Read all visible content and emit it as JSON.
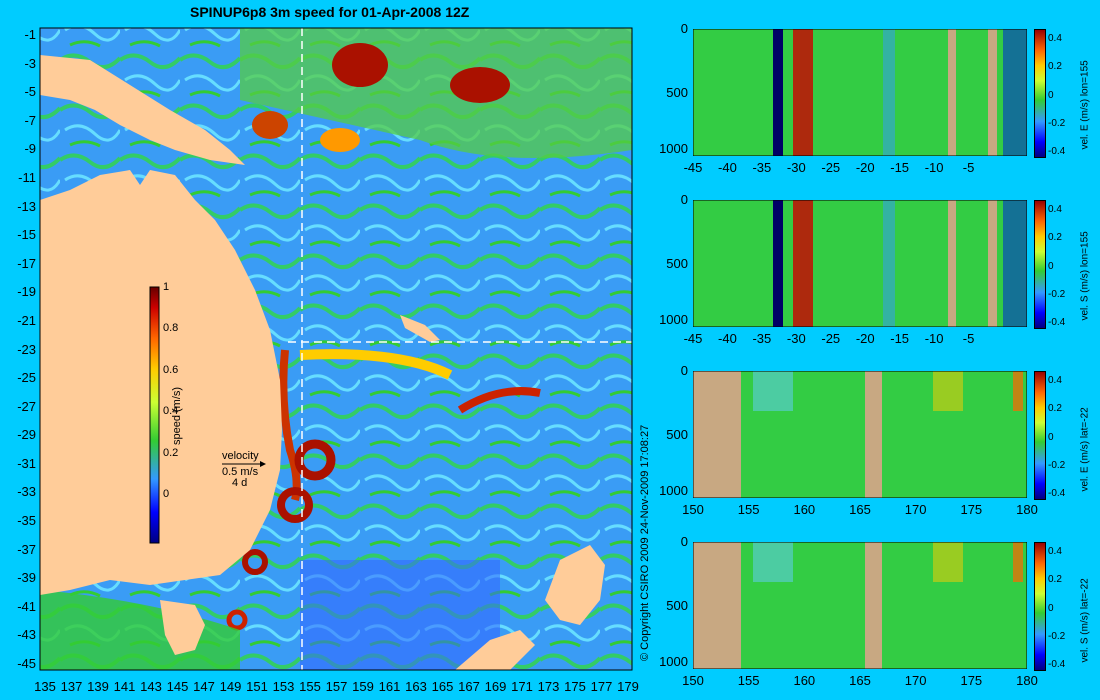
{
  "map": {
    "title": "SPINUP6p8 3m speed for 01-Apr-2008 12Z",
    "lat_ticks": [
      "-1",
      "-3",
      "-5",
      "-7",
      "-9",
      "-11",
      "-13",
      "-15",
      "-17",
      "-19",
      "-21",
      "-23",
      "-25",
      "-27",
      "-29",
      "-31",
      "-33",
      "-35",
      "-37",
      "-39",
      "-41",
      "-43",
      "-45"
    ],
    "lon_ticks": [
      "135",
      "137",
      "139",
      "141",
      "143",
      "145",
      "147",
      "149",
      "151",
      "153",
      "155",
      "157",
      "159",
      "161",
      "163",
      "165",
      "167",
      "169",
      "171",
      "173",
      "175",
      "177",
      "179"
    ],
    "colorbar_label": "speed (m/s)",
    "colorbar_ticks": [
      "1",
      "0.8",
      "0.6",
      "0.4",
      "0.2",
      "0"
    ],
    "velocity_key": {
      "title": "velocity",
      "speed": "0.5 m/s",
      "time": "4 d"
    },
    "copyright": "© Copyright CSIRO 2009   24-Nov-2009 17:08:27",
    "section_lines": {
      "lon": 155,
      "lat": -22
    }
  },
  "colors": {
    "background": "#00ccff",
    "land": "#ffcc99",
    "section_land": "#c8a882",
    "ocean_low": "#3399ff",
    "ocean_mid": "#33cc33",
    "ocean_high": "#ffff33",
    "ocean_peak": "#990000"
  },
  "sections": [
    {
      "label": "vel. E (m/s) lon=155",
      "x_ticks": [
        "-45",
        "-40",
        "-35",
        "-30",
        "-25",
        "-20",
        "-15",
        "-10",
        "-5"
      ],
      "y_ticks": [
        "0",
        "500",
        "1000"
      ],
      "cb_ticks": [
        "0.4",
        "0.2",
        "0",
        "-0.2",
        "-0.4"
      ]
    },
    {
      "label": "vel. S (m/s) lon=155",
      "x_ticks": [
        "-45",
        "-40",
        "-35",
        "-30",
        "-25",
        "-20",
        "-15",
        "-10",
        "-5"
      ],
      "y_ticks": [
        "0",
        "500",
        "1000"
      ],
      "cb_ticks": [
        "0.4",
        "0.2",
        "0",
        "-0.2",
        "-0.4"
      ]
    },
    {
      "label": "vel. E (m/s) lat=-22",
      "x_ticks": [
        "150",
        "155",
        "160",
        "165",
        "170",
        "175",
        "180"
      ],
      "y_ticks": [
        "0",
        "500",
        "1000"
      ],
      "cb_ticks": [
        "0.4",
        "0.2",
        "0",
        "-0.2",
        "-0.4"
      ]
    },
    {
      "label": "vel. S (m/s) lat=-22",
      "x_ticks": [
        "150",
        "155",
        "160",
        "165",
        "170",
        "175",
        "180"
      ],
      "y_ticks": [
        "0",
        "500",
        "1000"
      ],
      "cb_ticks": [
        "0.4",
        "0.2",
        "0",
        "-0.2",
        "-0.4"
      ]
    }
  ]
}
